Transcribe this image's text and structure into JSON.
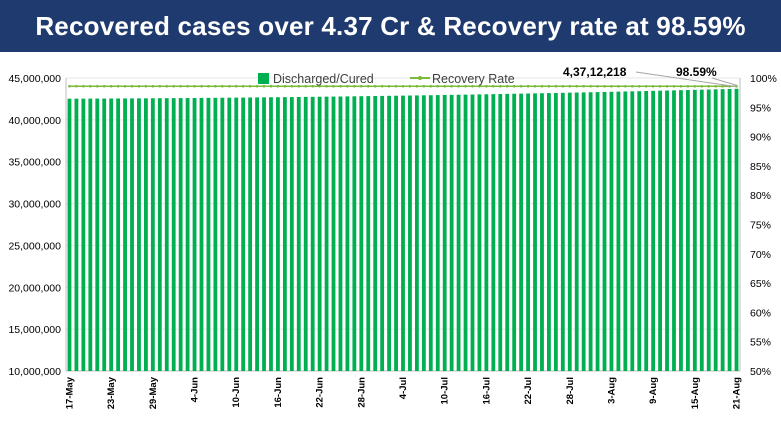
{
  "header": {
    "title": "Recovered cases over 4.37 Cr & Recovery rate at 98.59%"
  },
  "chart_data": {
    "type": "bar",
    "title": "",
    "xlabel": "",
    "ylabel": "",
    "y_left_ticks": [
      "10,000,000",
      "15,000,000",
      "20,000,000",
      "25,000,000",
      "30,000,000",
      "35,000,000",
      "40,000,000",
      "45,000,000"
    ],
    "y_left_lim": [
      10000000,
      45000000
    ],
    "y_right_ticks": [
      "50%",
      "55%",
      "60%",
      "65%",
      "70%",
      "75%",
      "80%",
      "85%",
      "90%",
      "95%",
      "100%"
    ],
    "y_right_lim": [
      50,
      100
    ],
    "x_tick_labels": [
      "17-May",
      "23-May",
      "29-May",
      "4-Jun",
      "10-Jun",
      "16-Jun",
      "22-Jun",
      "28-Jun",
      "4-Jul",
      "10-Jul",
      "16-Jul",
      "22-Jul",
      "28-Jul",
      "3-Aug",
      "9-Aug",
      "15-Aug",
      "21-Aug"
    ],
    "legend": {
      "placement": "top-center"
    },
    "series": [
      {
        "name": "Discharged/Cured",
        "type": "bar",
        "axis": "left",
        "color": "#00b050",
        "start_date": "17-May",
        "end_date": "21-Aug",
        "start_value": 42530000,
        "end_value": 43712218
      },
      {
        "name": "Recovery Rate",
        "type": "line",
        "axis": "right",
        "color": "#7cba3a",
        "start_value": 98.6,
        "end_value": 98.59
      }
    ],
    "annotations": [
      {
        "text": "4,37,12,218",
        "target": "21-Aug"
      },
      {
        "text": "98.59%",
        "target": "21-Aug"
      }
    ]
  }
}
